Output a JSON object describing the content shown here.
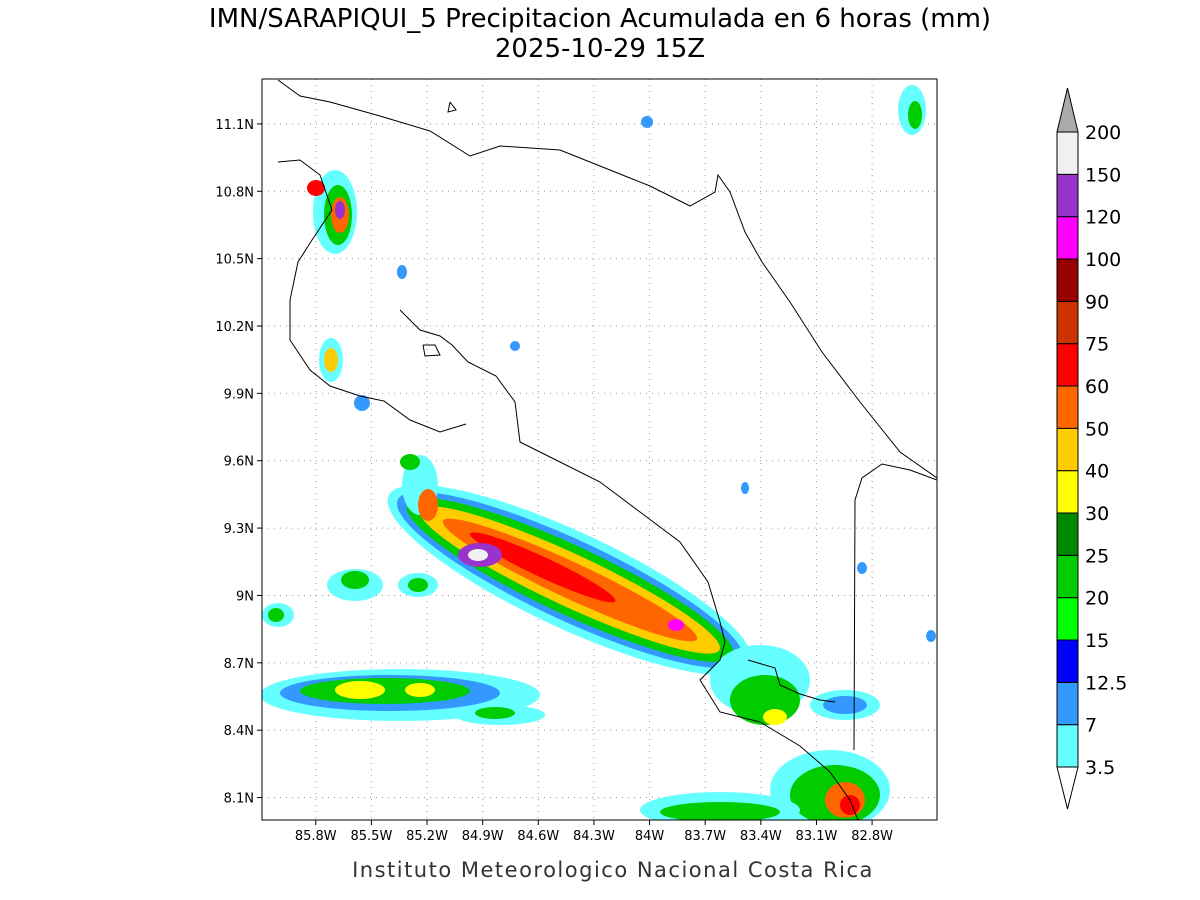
{
  "header": {
    "title": "IMN/SARAPIQUI_5 Precipitacion Acumulada en 6 horas (mm)",
    "subtitle": "2025-10-29 15Z"
  },
  "map": {
    "lon_range": [
      -86.09,
      -82.45
    ],
    "lat_range": [
      8.0,
      11.3
    ],
    "lon_ticks": [
      {
        "value": -85.8,
        "label": "85.8W"
      },
      {
        "value": -85.5,
        "label": "85.5W"
      },
      {
        "value": -85.2,
        "label": "85.2W"
      },
      {
        "value": -84.9,
        "label": "84.9W"
      },
      {
        "value": -84.6,
        "label": "84.6W"
      },
      {
        "value": -84.3,
        "label": "84.3W"
      },
      {
        "value": -84.0,
        "label": "84W"
      },
      {
        "value": -83.7,
        "label": "83.7W"
      },
      {
        "value": -83.4,
        "label": "83.4W"
      },
      {
        "value": -83.1,
        "label": "83.1W"
      },
      {
        "value": -82.8,
        "label": "82.8W"
      }
    ],
    "lat_ticks": [
      {
        "value": 8.1,
        "label": "8.1N"
      },
      {
        "value": 8.4,
        "label": "8.4N"
      },
      {
        "value": 8.7,
        "label": "8.7N"
      },
      {
        "value": 9.0,
        "label": "9N"
      },
      {
        "value": 9.3,
        "label": "9.3N"
      },
      {
        "value": 9.6,
        "label": "9.6N"
      },
      {
        "value": 9.9,
        "label": "9.9N"
      },
      {
        "value": 10.2,
        "label": "10.2N"
      },
      {
        "value": 10.5,
        "label": "10.5N"
      },
      {
        "value": 10.8,
        "label": "10.8N"
      },
      {
        "value": 11.1,
        "label": "11.1N"
      }
    ]
  },
  "colorbar": {
    "levels": [
      3.5,
      7,
      12.5,
      15,
      20,
      25,
      30,
      40,
      50,
      60,
      75,
      90,
      100,
      120,
      150,
      200
    ],
    "colors": [
      "#ffffff",
      "#66ffff",
      "#3399ff",
      "#0000ff",
      "#00ff00",
      "#00cc00",
      "#008800",
      "#ffff00",
      "#ffcc00",
      "#ff6600",
      "#ff0000",
      "#cc3300",
      "#990000",
      "#ff00ff",
      "#9933cc",
      "#f0f0f0",
      "#aaaaaa"
    ]
  },
  "footer": {
    "credit": "Instituto Meteorologico Nacional Costa Rica"
  }
}
